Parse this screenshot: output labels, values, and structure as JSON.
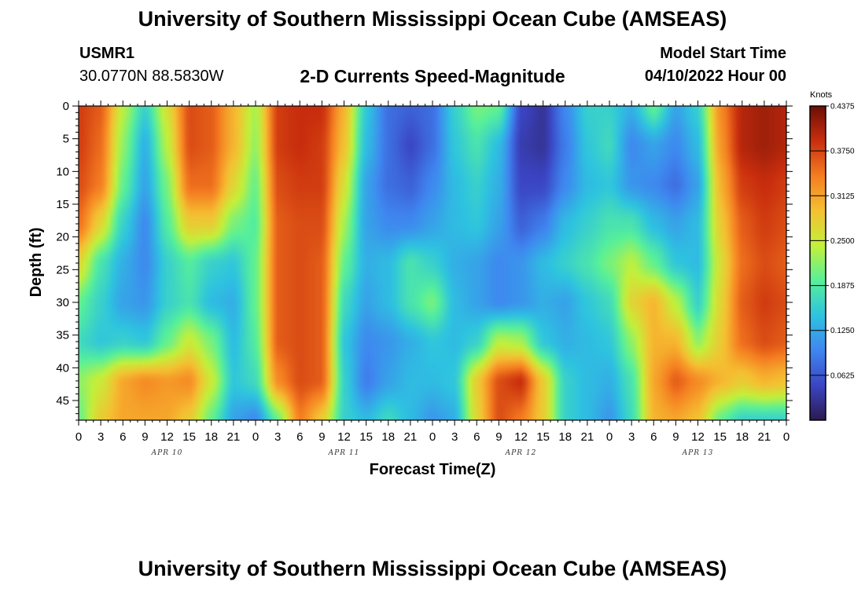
{
  "header": {
    "title": "University of Southern Mississippi Ocean Cube (AMSEAS)",
    "station_id": "USMR1",
    "station_coords": "30.0770N  88.5830W",
    "subtitle": "2-D Currents Speed-Magnitude",
    "model_start_label": "Model Start Time",
    "model_start_value": "04/10/2022 Hour 00"
  },
  "footer": {
    "title": "University of Southern Mississippi Ocean Cube (AMSEAS)"
  },
  "colors": {
    "palette": [
      "#2c1a4e",
      "#3b45c4",
      "#3f86f0",
      "#2ec3e0",
      "#57f09a",
      "#c3f03a",
      "#f5c032",
      "#f57d21",
      "#c92e0d",
      "#6b0e07"
    ]
  },
  "chart_data": {
    "type": "heatmap",
    "title": "2-D Currents Speed-Magnitude",
    "xlabel": "Forecast Time(Z)",
    "ylabel": "Depth (ft)",
    "x_tick_labels": [
      "0",
      "3",
      "6",
      "9",
      "12",
      "15",
      "18",
      "21",
      "0",
      "3",
      "6",
      "9",
      "12",
      "15",
      "18",
      "21",
      "0",
      "3",
      "6",
      "9",
      "12",
      "15",
      "18",
      "21",
      "0",
      "3",
      "6",
      "9",
      "12",
      "15",
      "18",
      "21",
      "0"
    ],
    "x_range_hours": [
      0,
      96
    ],
    "day_labels": [
      "APR 10",
      "APR 11",
      "APR 12",
      "APR 13"
    ],
    "y_tick_labels": [
      "0",
      "5",
      "10",
      "15",
      "20",
      "25",
      "30",
      "35",
      "40",
      "45"
    ],
    "y_range": [
      0,
      48
    ],
    "y_inverted": true,
    "colorbar": {
      "unit": "Knots",
      "min": 0.0,
      "max": 0.4375,
      "tick_labels": [
        "0.4375",
        "0.3750",
        "0.3125",
        "0.2500",
        "0.1875",
        "0.1250",
        "0.0625"
      ],
      "tick_values": [
        0.4375,
        0.375,
        0.3125,
        0.25,
        0.1875,
        0.125,
        0.0625
      ]
    },
    "z_units": "knots",
    "hours": [
      0,
      3,
      6,
      9,
      12,
      15,
      18,
      21,
      24,
      27,
      30,
      33,
      36,
      39,
      42,
      45,
      48,
      51,
      54,
      57,
      60,
      63,
      66,
      69,
      72,
      75,
      78,
      81,
      84,
      87,
      90,
      93,
      96
    ],
    "depths": [
      0,
      6,
      12,
      18,
      24,
      30,
      36,
      42,
      48
    ],
    "z": [
      [
        0.38,
        0.36,
        0.24,
        0.16,
        0.26,
        0.37,
        0.36,
        0.3,
        0.23,
        0.38,
        0.39,
        0.39,
        0.3,
        0.15,
        0.08,
        0.07,
        0.08,
        0.16,
        0.21,
        0.2,
        0.05,
        0.03,
        0.1,
        0.16,
        0.16,
        0.13,
        0.2,
        0.12,
        0.16,
        0.33,
        0.4,
        0.41,
        0.4
      ],
      [
        0.38,
        0.35,
        0.22,
        0.13,
        0.24,
        0.37,
        0.36,
        0.3,
        0.22,
        0.38,
        0.39,
        0.38,
        0.29,
        0.14,
        0.08,
        0.05,
        0.08,
        0.15,
        0.18,
        0.14,
        0.04,
        0.03,
        0.09,
        0.15,
        0.17,
        0.1,
        0.12,
        0.1,
        0.14,
        0.32,
        0.4,
        0.41,
        0.4
      ],
      [
        0.37,
        0.34,
        0.2,
        0.12,
        0.21,
        0.35,
        0.35,
        0.27,
        0.2,
        0.37,
        0.38,
        0.38,
        0.26,
        0.12,
        0.08,
        0.07,
        0.1,
        0.14,
        0.16,
        0.13,
        0.05,
        0.05,
        0.1,
        0.14,
        0.15,
        0.11,
        0.1,
        0.08,
        0.12,
        0.3,
        0.38,
        0.39,
        0.38
      ],
      [
        0.35,
        0.27,
        0.16,
        0.1,
        0.19,
        0.28,
        0.28,
        0.21,
        0.19,
        0.36,
        0.37,
        0.37,
        0.23,
        0.12,
        0.1,
        0.1,
        0.12,
        0.14,
        0.15,
        0.12,
        0.07,
        0.09,
        0.14,
        0.16,
        0.18,
        0.18,
        0.14,
        0.12,
        0.14,
        0.28,
        0.36,
        0.38,
        0.37
      ],
      [
        0.27,
        0.18,
        0.13,
        0.1,
        0.16,
        0.19,
        0.16,
        0.15,
        0.2,
        0.36,
        0.37,
        0.36,
        0.2,
        0.13,
        0.14,
        0.18,
        0.16,
        0.13,
        0.12,
        0.1,
        0.11,
        0.14,
        0.16,
        0.18,
        0.21,
        0.24,
        0.2,
        0.15,
        0.14,
        0.26,
        0.35,
        0.37,
        0.36
      ],
      [
        0.2,
        0.16,
        0.12,
        0.11,
        0.16,
        0.18,
        0.14,
        0.13,
        0.2,
        0.36,
        0.37,
        0.36,
        0.17,
        0.12,
        0.14,
        0.18,
        0.21,
        0.14,
        0.12,
        0.1,
        0.11,
        0.13,
        0.12,
        0.15,
        0.17,
        0.27,
        0.3,
        0.24,
        0.16,
        0.27,
        0.36,
        0.38,
        0.37
      ],
      [
        0.17,
        0.15,
        0.16,
        0.15,
        0.2,
        0.25,
        0.21,
        0.14,
        0.19,
        0.36,
        0.37,
        0.36,
        0.15,
        0.1,
        0.11,
        0.13,
        0.15,
        0.14,
        0.16,
        0.24,
        0.23,
        0.15,
        0.13,
        0.14,
        0.15,
        0.22,
        0.3,
        0.3,
        0.22,
        0.28,
        0.35,
        0.37,
        0.36
      ],
      [
        0.22,
        0.25,
        0.31,
        0.33,
        0.32,
        0.33,
        0.25,
        0.15,
        0.17,
        0.33,
        0.37,
        0.36,
        0.16,
        0.09,
        0.12,
        0.14,
        0.14,
        0.15,
        0.28,
        0.37,
        0.39,
        0.28,
        0.16,
        0.14,
        0.13,
        0.18,
        0.31,
        0.36,
        0.33,
        0.3,
        0.28,
        0.3,
        0.29
      ],
      [
        0.2,
        0.28,
        0.31,
        0.31,
        0.31,
        0.28,
        0.2,
        0.12,
        0.1,
        0.2,
        0.34,
        0.28,
        0.16,
        0.14,
        0.17,
        0.14,
        0.11,
        0.13,
        0.27,
        0.37,
        0.34,
        0.28,
        0.16,
        0.14,
        0.11,
        0.17,
        0.3,
        0.31,
        0.29,
        0.2,
        0.16,
        0.16,
        0.16
      ]
    ]
  }
}
